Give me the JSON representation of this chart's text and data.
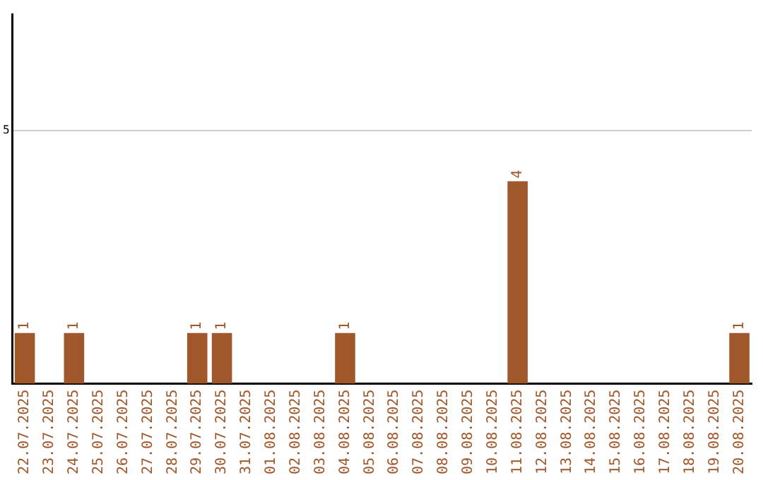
{
  "chart_data": {
    "type": "bar",
    "categories": [
      "22.07.2025",
      "23.07.2025",
      "24.07.2025",
      "25.07.2025",
      "26.07.2025",
      "27.07.2025",
      "28.07.2025",
      "29.07.2025",
      "30.07.2025",
      "31.07.2025",
      "01.08.2025",
      "02.08.2025",
      "03.08.2025",
      "04.08.2025",
      "05.08.2025",
      "06.08.2025",
      "07.08.2025",
      "08.08.2025",
      "09.08.2025",
      "10.08.2025",
      "11.08.2025",
      "12.08.2025",
      "13.08.2025",
      "14.08.2025",
      "15.08.2025",
      "16.08.2025",
      "17.08.2025",
      "18.08.2025",
      "19.08.2025",
      "20.08.2025"
    ],
    "values": [
      1,
      0,
      1,
      0,
      0,
      0,
      0,
      1,
      1,
      0,
      0,
      0,
      0,
      1,
      0,
      0,
      0,
      0,
      0,
      0,
      4,
      0,
      0,
      0,
      0,
      0,
      0,
      0,
      0,
      1
    ],
    "value_labels": [
      "1",
      null,
      "1",
      null,
      null,
      null,
      null,
      "1",
      "1",
      null,
      null,
      null,
      null,
      "1",
      null,
      null,
      null,
      null,
      null,
      null,
      "4",
      null,
      null,
      null,
      null,
      null,
      null,
      null,
      null,
      "1"
    ],
    "color": "#a0572a",
    "ylim": [
      0,
      7.3
    ],
    "yticks": [
      5
    ],
    "grid": "y",
    "legend": false
  }
}
